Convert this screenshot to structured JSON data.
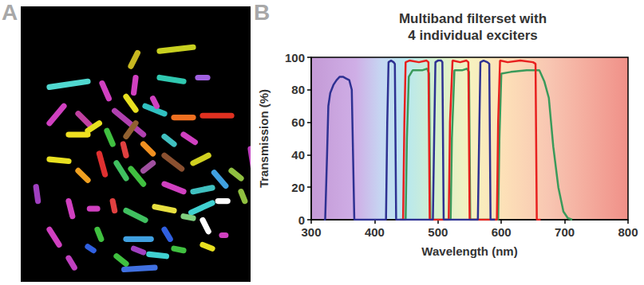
{
  "panel_labels": [
    "A",
    "B"
  ],
  "chart_data": {
    "type": "line",
    "title": "Multiband filterset with 4 individual exciters",
    "x_label": "Wavelength (nm)",
    "y_label": "Transmission (%)",
    "xlim": [
      300,
      800
    ],
    "xticks": [
      300,
      400,
      500,
      600,
      700,
      800
    ],
    "ylim": [
      0,
      100
    ],
    "yticks": [
      0,
      20,
      40,
      60,
      80,
      100
    ],
    "grid": false,
    "series": [
      {
        "color": "#3a9a5a",
        "x": [
          445,
          449,
          451,
          454,
          460,
          475,
          483,
          486,
          488,
          517,
          520,
          522,
          526,
          538,
          546,
          549,
          551,
          592,
          595,
          597,
          600,
          615,
          640,
          660,
          668,
          675,
          682,
          690,
          698,
          705,
          712
        ],
        "values": [
          0,
          0,
          50,
          88,
          92,
          92,
          93,
          90,
          0,
          0,
          0,
          50,
          92,
          92,
          93,
          91,
          0,
          0,
          0,
          50,
          90,
          91,
          92,
          92,
          85,
          75,
          45,
          20,
          5,
          1,
          0
        ]
      },
      {
        "color": "#e8201f",
        "x": [
          440,
          445,
          447,
          449,
          455,
          470,
          482,
          485,
          487,
          515,
          517,
          519,
          523,
          535,
          545,
          548,
          550,
          590,
          593,
          595,
          598,
          610,
          630,
          650,
          654,
          656,
          662
        ],
        "values": [
          0,
          0,
          60,
          97,
          98,
          97,
          98,
          97,
          0,
          0,
          0,
          60,
          98,
          97,
          98,
          97,
          0,
          0,
          0,
          60,
          98,
          97,
          98,
          97,
          96,
          0,
          0
        ]
      },
      {
        "color": "#2e3192",
        "x": [
          320,
          322,
          325,
          327,
          330,
          335,
          340,
          345,
          350,
          355,
          360,
          364,
          366,
          368,
          372,
          415,
          418,
          420,
          422,
          426,
          430,
          432,
          434,
          490,
          492,
          494,
          496,
          500,
          505,
          507,
          509,
          561,
          563,
          565,
          567,
          572,
          578,
          581,
          583,
          590
        ],
        "values": [
          0,
          0,
          40,
          70,
          78,
          83,
          86,
          88,
          88,
          87,
          86,
          80,
          40,
          0,
          0,
          0,
          0,
          60,
          97,
          98,
          97,
          96,
          0,
          0,
          0,
          50,
          97,
          98,
          98,
          97,
          0,
          0,
          0,
          50,
          97,
          98,
          97,
          96,
          0,
          0
        ]
      }
    ]
  }
}
